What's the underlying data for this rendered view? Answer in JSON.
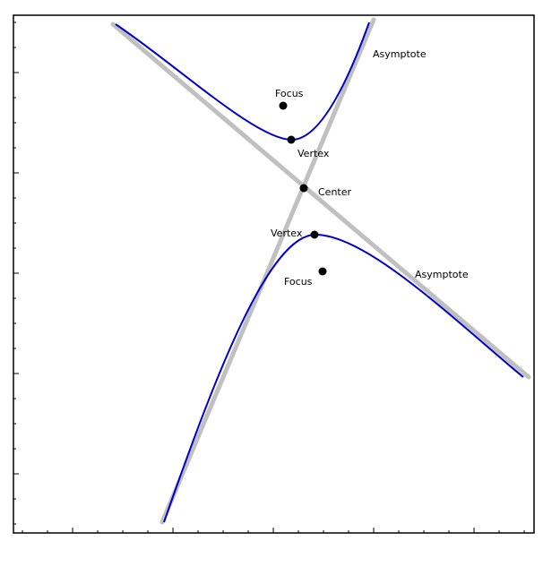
{
  "colors": {
    "background": "#ffffff",
    "frame": "#000000",
    "asymptote": "#c0c0c0",
    "hyperbola": "#0000cc",
    "point": "#000000"
  },
  "labels": {
    "asymptote_upper": "Asymptote",
    "asymptote_lower": "Asymptote",
    "focus_upper": "Focus",
    "focus_lower": "Focus",
    "vertex_upper": "Vertex",
    "vertex_lower": "Vertex",
    "center": "Center"
  }
}
